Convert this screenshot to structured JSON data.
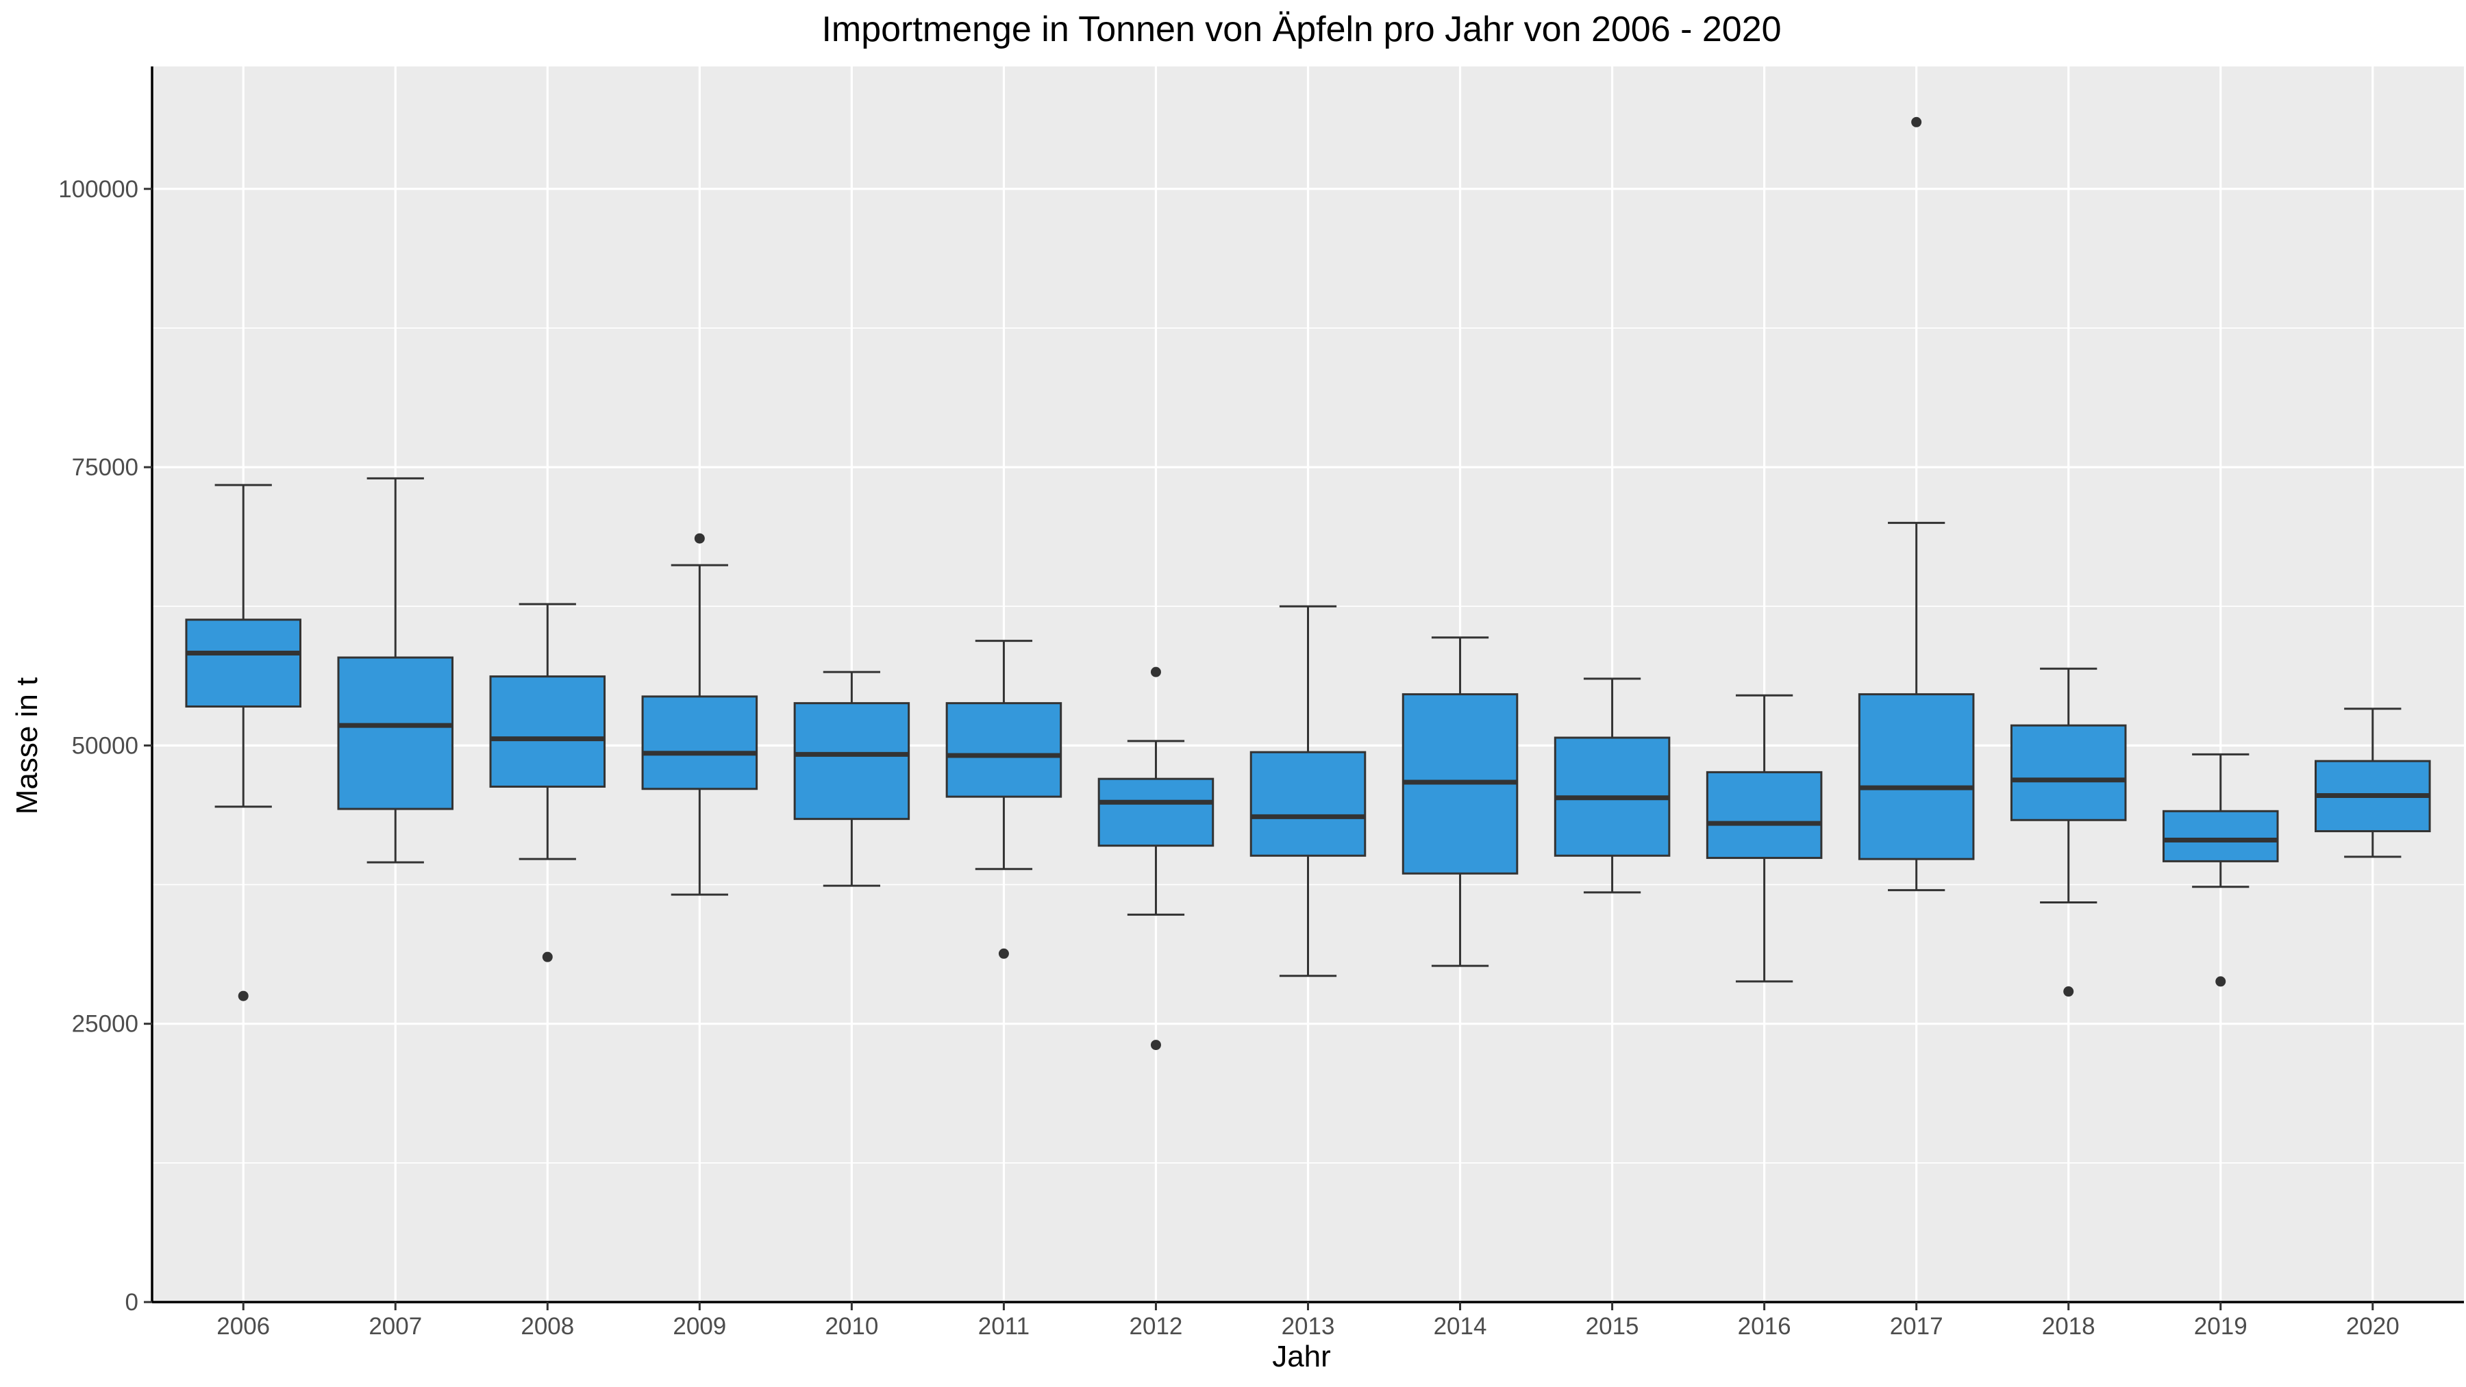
{
  "chart_data": {
    "type": "boxplot",
    "title": "Importmenge in Tonnen von Äpfeln pro Jahr von 2006 - 2020",
    "xlabel": "Jahr",
    "ylabel": "Masse in t",
    "ylim": [
      0,
      111000
    ],
    "yticks": [
      0,
      25000,
      50000,
      75000,
      100000
    ],
    "ytick_labels": [
      "0",
      "25000",
      "50000",
      "75000",
      "100000"
    ],
    "grid": true,
    "legend": "none",
    "colors": {
      "box_fill": "#3498db",
      "panel_bg": "#ebebeb",
      "grid": "#ffffff",
      "outline": "#333333"
    },
    "categories": [
      "2006",
      "2007",
      "2008",
      "2009",
      "2010",
      "2011",
      "2012",
      "2013",
      "2014",
      "2015",
      "2016",
      "2017",
      "2018",
      "2019",
      "2020"
    ],
    "boxes": [
      {
        "category": "2006",
        "whisker_low": 44500,
        "q1": 53500,
        "median": 58300,
        "q3": 61300,
        "whisker_high": 73400,
        "outliers": [
          27500
        ]
      },
      {
        "category": "2007",
        "whisker_low": 39500,
        "q1": 44300,
        "median": 51800,
        "q3": 57900,
        "whisker_high": 74000,
        "outliers": []
      },
      {
        "category": "2008",
        "whisker_low": 39800,
        "q1": 46300,
        "median": 50600,
        "q3": 56200,
        "whisker_high": 62700,
        "outliers": [
          31000
        ]
      },
      {
        "category": "2009",
        "whisker_low": 36600,
        "q1": 46100,
        "median": 49300,
        "q3": 54400,
        "whisker_high": 66200,
        "outliers": [
          68600
        ]
      },
      {
        "category": "2010",
        "whisker_low": 37400,
        "q1": 43400,
        "median": 49200,
        "q3": 53800,
        "whisker_high": 56600,
        "outliers": []
      },
      {
        "category": "2011",
        "whisker_low": 38900,
        "q1": 45400,
        "median": 49100,
        "q3": 53800,
        "whisker_high": 59400,
        "outliers": [
          31300
        ]
      },
      {
        "category": "2012",
        "whisker_low": 34800,
        "q1": 41000,
        "median": 44900,
        "q3": 47000,
        "whisker_high": 50400,
        "outliers": [
          56600,
          23100
        ]
      },
      {
        "category": "2013",
        "whisker_low": 29300,
        "q1": 40100,
        "median": 43600,
        "q3": 49400,
        "whisker_high": 62500,
        "outliers": []
      },
      {
        "category": "2014",
        "whisker_low": 30200,
        "q1": 38500,
        "median": 46700,
        "q3": 54600,
        "whisker_high": 59700,
        "outliers": []
      },
      {
        "category": "2015",
        "whisker_low": 36800,
        "q1": 40100,
        "median": 45300,
        "q3": 50700,
        "whisker_high": 56000,
        "outliers": []
      },
      {
        "category": "2016",
        "whisker_low": 28800,
        "q1": 39900,
        "median": 43000,
        "q3": 47600,
        "whisker_high": 54500,
        "outliers": []
      },
      {
        "category": "2017",
        "whisker_low": 37000,
        "q1": 39800,
        "median": 46200,
        "q3": 54600,
        "whisker_high": 70000,
        "outliers": [
          106000
        ]
      },
      {
        "category": "2018",
        "whisker_low": 35900,
        "q1": 43300,
        "median": 46900,
        "q3": 51800,
        "whisker_high": 56900,
        "outliers": [
          27900
        ]
      },
      {
        "category": "2019",
        "whisker_low": 37300,
        "q1": 39600,
        "median": 41500,
        "q3": 44100,
        "whisker_high": 49200,
        "outliers": [
          28800
        ]
      },
      {
        "category": "2020",
        "whisker_low": 40000,
        "q1": 42300,
        "median": 45500,
        "q3": 48600,
        "whisker_high": 53300,
        "outliers": []
      }
    ]
  }
}
